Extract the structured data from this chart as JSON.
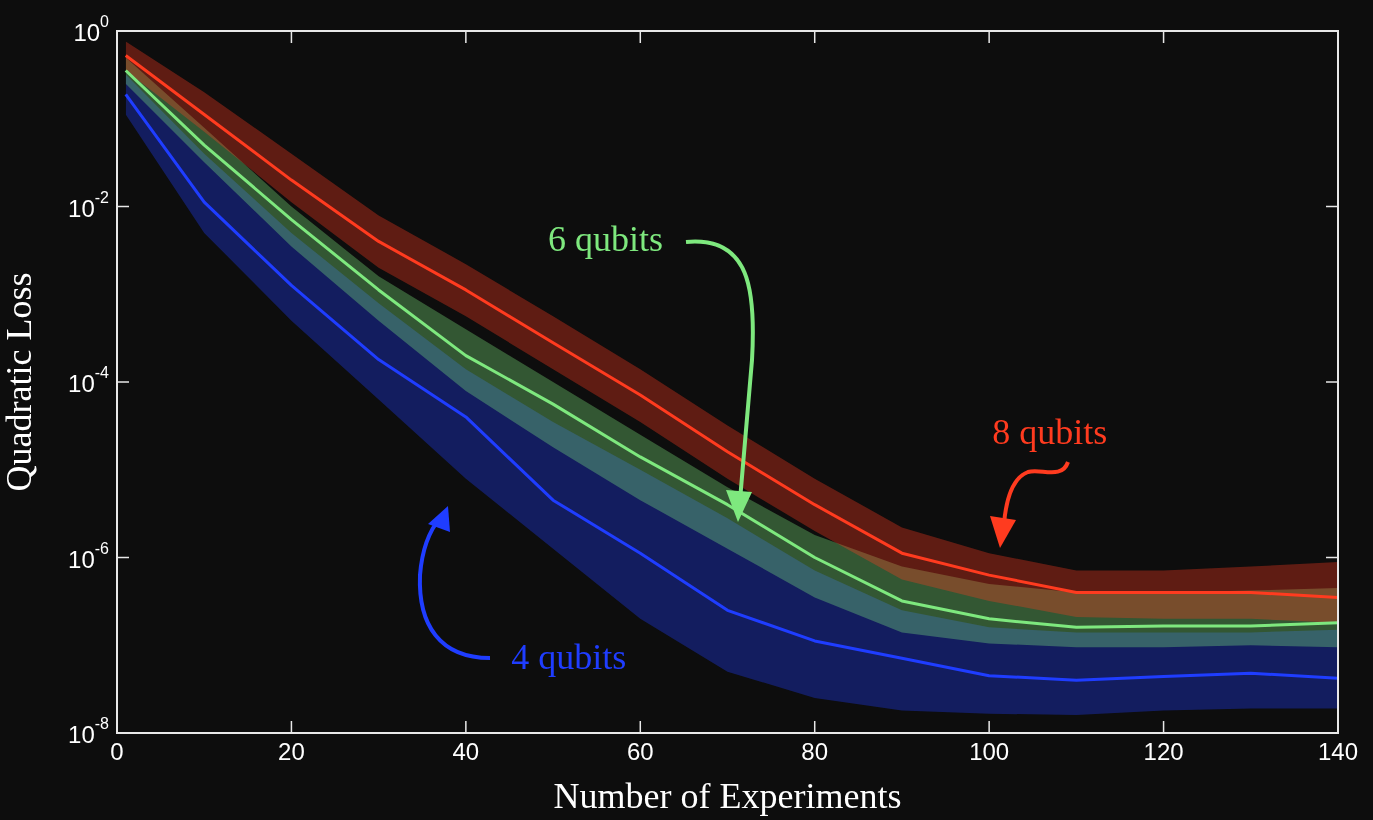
{
  "chart_data": {
    "type": "line",
    "xlabel": "Number of Experiments",
    "ylabel": "Quadratic Loss",
    "log": "y",
    "grid": false,
    "marker": "none",
    "line_style": "solid",
    "x": [
      1,
      10,
      20,
      30,
      40,
      50,
      60,
      70,
      80,
      90,
      100,
      110,
      120,
      130,
      140
    ],
    "xlim": [
      0,
      140
    ],
    "xticks": [
      0,
      20,
      40,
      60,
      80,
      100,
      120,
      140
    ],
    "ylim": [
      1e-08,
      1
    ],
    "yticks": [
      {
        "value": 1e-08,
        "label": "10$^{-8}$"
      },
      {
        "value": 1e-06,
        "label": "10$^{-6}$"
      },
      {
        "value": 0.0001,
        "label": "10$^{-4}$"
      },
      {
        "value": 0.01,
        "label": "10$^{-2}$"
      },
      {
        "value": 1,
        "label": "10$^{0}$"
      }
    ],
    "series": [
      {
        "name": "4 qubits",
        "color": "#1f3dff",
        "values": [
          0.19,
          0.0112,
          0.00126,
          0.00018,
          4e-05,
          4.5e-06,
          1.12e-06,
          2.5e-07,
          1.12e-07,
          7.1e-08,
          4.5e-08,
          4e-08,
          4.4e-08,
          4.8e-08,
          4.2e-08
        ],
        "lower": [
          0.112,
          0.005,
          0.0005,
          6.3e-05,
          7.9e-06,
          1.26e-06,
          2e-07,
          5e-08,
          2.5e-08,
          1.8e-08,
          1.66e-08,
          1.6e-08,
          1.8e-08,
          1.9e-08,
          1.9e-08
        ],
        "upper": [
          0.32,
          0.04,
          0.005,
          0.00079,
          0.00014,
          3.5e-05,
          1e-05,
          2.8e-06,
          7.1e-07,
          2.5e-07,
          1.6e-07,
          1.4e-07,
          1.4e-07,
          1.4e-07,
          1.5e-07
        ]
      },
      {
        "name": "6 qubits",
        "color": "#7ee87e",
        "values": [
          0.355,
          0.05,
          0.0071,
          0.00112,
          0.0002,
          5.6e-05,
          1.4e-05,
          4e-06,
          1e-06,
          3.2e-07,
          2e-07,
          1.6e-07,
          1.66e-07,
          1.66e-07,
          1.8e-07
        ],
        "lower": [
          0.25,
          0.032,
          0.0035,
          0.0005,
          7.9e-05,
          1.8e-05,
          4.5e-06,
          1.26e-06,
          3.5e-07,
          1.4e-07,
          1.05e-07,
          9.5e-08,
          9.5e-08,
          1e-07,
          9.5e-08
        ],
        "upper": [
          0.5,
          0.079,
          0.01,
          0.0016,
          0.0004,
          0.0001,
          2.5e-05,
          6.3e-06,
          1.8e-06,
          7.9e-07,
          5e-07,
          4e-07,
          4e-07,
          4.2e-07,
          4.5e-07
        ]
      },
      {
        "name": "8 qubits",
        "color": "#ff3b1f",
        "values": [
          0.525,
          0.112,
          0.02,
          0.004,
          0.00112,
          0.00028,
          7.1e-05,
          1.6e-05,
          4e-06,
          1.12e-06,
          6.3e-07,
          4e-07,
          4e-07,
          4e-07,
          3.5e-07
        ],
        "lower": [
          0.355,
          0.071,
          0.0112,
          0.002,
          0.00056,
          0.00014,
          3.5e-05,
          7.9e-06,
          2e-06,
          5.6e-07,
          3.2e-07,
          2.1e-07,
          2e-07,
          2e-07,
          1.8e-07
        ],
        "upper": [
          0.76,
          0.2,
          0.04,
          0.0079,
          0.0022,
          0.00056,
          0.00014,
          3.2e-05,
          7.9e-06,
          2.2e-06,
          1.12e-06,
          7.1e-07,
          7.1e-07,
          7.9e-07,
          8.9e-07
        ]
      }
    ]
  }
}
